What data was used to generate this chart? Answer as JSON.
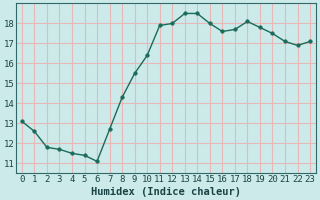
{
  "xlabel": "Humidex (Indice chaleur)",
  "x": [
    0,
    1,
    2,
    3,
    4,
    5,
    6,
    7,
    8,
    9,
    10,
    11,
    12,
    13,
    14,
    15,
    16,
    17,
    18,
    19,
    20,
    21,
    22,
    23
  ],
  "y": [
    13.1,
    12.6,
    11.8,
    11.7,
    11.5,
    11.4,
    11.1,
    12.7,
    14.3,
    15.5,
    16.4,
    17.9,
    18.0,
    18.5,
    18.5,
    18.0,
    17.6,
    17.7,
    18.1,
    17.8,
    17.5,
    17.1,
    16.9,
    17.1
  ],
  "line_color": "#1a6b5a",
  "marker": "o",
  "marker_size": 2.5,
  "line_width": 1.0,
  "background_color": "#cceaea",
  "grid_major_color": "#e8b8b8",
  "grid_minor_color": "#ffffff",
  "spine_color": "#336666",
  "ylim": [
    10.5,
    19.0
  ],
  "xlim": [
    -0.5,
    23.5
  ],
  "yticks": [
    11,
    12,
    13,
    14,
    15,
    16,
    17,
    18
  ],
  "xticks": [
    0,
    1,
    2,
    3,
    4,
    5,
    6,
    7,
    8,
    9,
    10,
    11,
    12,
    13,
    14,
    15,
    16,
    17,
    18,
    19,
    20,
    21,
    22,
    23
  ],
  "xtick_labels": [
    "0",
    "1",
    "2",
    "3",
    "4",
    "5",
    "6",
    "7",
    "8",
    "9",
    "10",
    "11",
    "12",
    "13",
    "14",
    "15",
    "16",
    "17",
    "18",
    "19",
    "20",
    "21",
    "22",
    "23"
  ],
  "tick_fontsize": 6.5,
  "label_fontsize": 7.5,
  "text_color": "#1a4444"
}
